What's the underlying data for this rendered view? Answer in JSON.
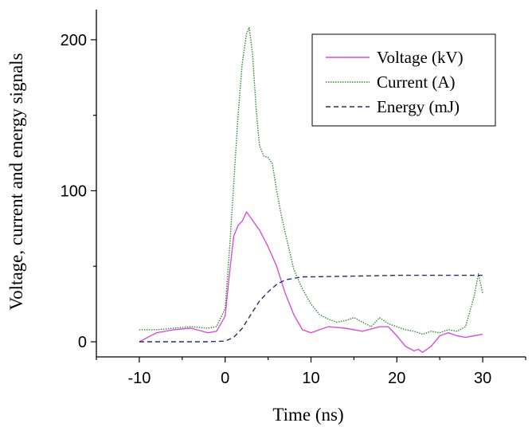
{
  "chart_data": {
    "type": "line",
    "title": "",
    "xlabel": "Time (ns)",
    "ylabel": "Voltage, current and energy signals",
    "xlim": [
      -15,
      35
    ],
    "ylim": [
      -10,
      220
    ],
    "xticks": [
      -10,
      0,
      10,
      20,
      30
    ],
    "yticks": [
      0,
      100,
      200
    ],
    "grid": false,
    "legend_position": "top-right",
    "series": [
      {
        "name": "Voltage (kV)",
        "color": "#d94fd3",
        "dash": "solid",
        "x": [
          -10,
          -8,
          -6,
          -4,
          -2,
          -1,
          0,
          0.5,
          1,
          1.5,
          2,
          2.5,
          3,
          3.5,
          4,
          5,
          6,
          7,
          8,
          9,
          10,
          11,
          12,
          14,
          16,
          18,
          19,
          20,
          21,
          22,
          22.5,
          23,
          24,
          25,
          26,
          27,
          28,
          29,
          30
        ],
        "y": [
          0,
          6,
          8,
          9,
          6,
          7,
          17,
          45,
          70,
          77,
          80,
          86,
          82,
          78,
          74,
          63,
          50,
          32,
          18,
          8,
          6,
          8,
          10,
          9,
          7,
          10,
          10,
          4,
          -3,
          -6,
          -5,
          -7,
          -3,
          4,
          6,
          4,
          3,
          4,
          5
        ]
      },
      {
        "name": "Current (A)",
        "color": "#2e8b2e",
        "dash": "dotted",
        "x": [
          -10,
          -8,
          -6,
          -4,
          -2,
          -1,
          0,
          0.5,
          1,
          1.5,
          2,
          2.5,
          2.8,
          3.2,
          3.6,
          4,
          4.5,
          5,
          5.5,
          6,
          6.5,
          7,
          7.5,
          8,
          9,
          10,
          11,
          12,
          13,
          14,
          15,
          16,
          17,
          18,
          19,
          20,
          21,
          22,
          23,
          24,
          25,
          26,
          27,
          28,
          29,
          29.5,
          30
        ],
        "y": [
          8,
          8,
          9,
          10,
          9,
          10,
          22,
          60,
          105,
          150,
          185,
          204,
          208,
          190,
          155,
          130,
          123,
          122,
          118,
          100,
          85,
          72,
          60,
          48,
          35,
          25,
          18,
          15,
          13,
          14,
          16,
          13,
          10,
          16,
          12,
          10,
          8,
          7,
          5,
          7,
          6,
          8,
          7,
          10,
          30,
          45,
          32
        ]
      },
      {
        "name": "Energy (mJ)",
        "color": "#2b2d6e",
        "dash": "dashed",
        "x": [
          -10,
          -2,
          0,
          1,
          2,
          3,
          4,
          5,
          6,
          7,
          8,
          9,
          10,
          15,
          20,
          25,
          30
        ],
        "y": [
          0,
          0,
          0.5,
          3,
          9,
          18,
          27,
          33,
          38,
          41,
          42,
          43,
          43,
          43.5,
          44,
          44,
          44
        ]
      }
    ]
  }
}
